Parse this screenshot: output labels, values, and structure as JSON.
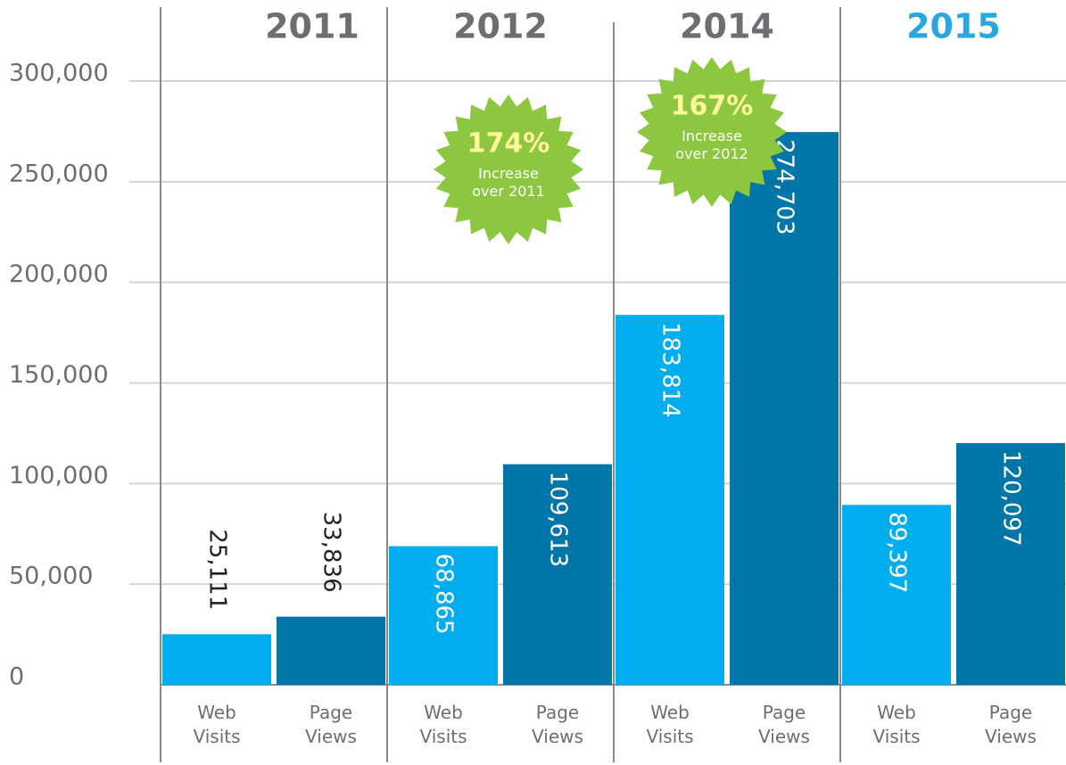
{
  "chart_data": {
    "type": "bar",
    "categories": [
      "2011",
      "2012",
      "2014",
      "2015"
    ],
    "category_colors": [
      "#6d6e71",
      "#6d6e71",
      "#6d6e71",
      "#29a8e0"
    ],
    "series": [
      {
        "name": "Web Visits",
        "color": "#00aeef",
        "values": [
          25111,
          68865,
          183814,
          89397
        ],
        "value_labels": [
          "25,111",
          "68,865",
          "183,814",
          "89,397"
        ]
      },
      {
        "name": "Page Views",
        "color": "#0076a8",
        "values": [
          33836,
          109613,
          274703,
          120097
        ],
        "value_labels": [
          "33,836",
          "109,613",
          "274,703",
          "120,097"
        ]
      }
    ],
    "ylim": [
      0,
      300000
    ],
    "yticks": [
      0,
      {
        "value": 50000,
        "label": "50,000"
      },
      {
        "value": 100000,
        "label": "100,000"
      },
      {
        "value": 150000,
        "label": "150,000"
      },
      {
        "value": 200000,
        "label": "200,000"
      },
      {
        "value": 250000,
        "label": "250,000"
      },
      {
        "value": 300000,
        "label": "300,000"
      }
    ],
    "grid": true,
    "annotations": [
      {
        "text": "174%",
        "note": "Increase over 2011",
        "color": "#8dc63f"
      },
      {
        "text": "167%",
        "note": "Increase over 2012",
        "color": "#8dc63f"
      }
    ]
  }
}
